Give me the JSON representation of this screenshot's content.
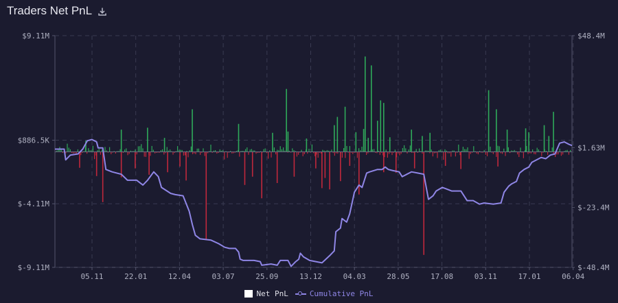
{
  "header": {
    "title": "Traders Net PnL",
    "download_icon": "download-icon"
  },
  "colors": {
    "background": "#1b1b2f",
    "positive_bar": "#2faa5a",
    "negative_bar": "#c0283c",
    "cumulative_line": "#8f86e6",
    "grid": "#3a3b52",
    "axis": "#55566e"
  },
  "chart_data": {
    "type": "bar+line",
    "title": "Traders Net PnL",
    "x_tick_labels": [
      "05.11",
      "22.01",
      "12.04",
      "03.07",
      "25.09",
      "13.12",
      "04.03",
      "28.05",
      "17.08",
      "03.11",
      "17.01",
      "06.04"
    ],
    "y_left": {
      "unit": "USD",
      "ylim": [
        -9110000,
        9110000
      ],
      "tick_values": [
        -9110000,
        -4110000,
        886500,
        9110000
      ],
      "tick_labels": [
        "$-9.11M",
        "$-4.11M",
        "$886.5K",
        "$9.11M"
      ]
    },
    "y_right": {
      "unit": "USD",
      "ylim": [
        -48400000,
        48400000
      ],
      "tick_values": [
        -48400000,
        -23400000,
        1630000,
        48400000
      ],
      "tick_labels": [
        "$-48.4M",
        "$-23.4M",
        "$1.63M",
        "$48.4M"
      ]
    },
    "grid": true,
    "legend_position": "bottom-center",
    "series": [
      {
        "name": "Net PnL",
        "kind": "bar",
        "axis": "left",
        "notable_values": [
          {
            "x": 0.08,
            "y": -1250000
          },
          {
            "x": 0.1,
            "y": 880000
          },
          {
            "x": 0.135,
            "y": -1900000
          },
          {
            "x": 0.155,
            "y": -3950000
          },
          {
            "x": 0.215,
            "y": 1750000
          },
          {
            "x": 0.215,
            "y": -2000000
          },
          {
            "x": 0.26,
            "y": -1300000
          },
          {
            "x": 0.3,
            "y": 1900000
          },
          {
            "x": 0.305,
            "y": -1800000
          },
          {
            "x": 0.355,
            "y": 1100000
          },
          {
            "x": 0.365,
            "y": -1600000
          },
          {
            "x": 0.405,
            "y": -1150000
          },
          {
            "x": 0.425,
            "y": -2250000
          },
          {
            "x": 0.445,
            "y": 3350000
          },
          {
            "x": 0.49,
            "y": -6950000
          },
          {
            "x": 0.595,
            "y": 2200000
          },
          {
            "x": 0.615,
            "y": -2600000
          },
          {
            "x": 0.64,
            "y": -1950000
          },
          {
            "x": 0.67,
            "y": -3650000
          },
          {
            "x": 0.705,
            "y": 1500000
          },
          {
            "x": 0.72,
            "y": -2450000
          },
          {
            "x": 0.75,
            "y": 4950000
          },
          {
            "x": 0.755,
            "y": 1600000
          },
          {
            "x": 0.775,
            "y": -1950000
          },
          {
            "x": 0.815,
            "y": 1050000
          },
          {
            "x": 0.845,
            "y": -1300000
          },
          {
            "x": 0.865,
            "y": -2850000
          },
          {
            "x": 0.875,
            "y": -2050000
          },
          {
            "x": 0.89,
            "y": -2950000
          },
          {
            "x": 0.905,
            "y": 2100000
          },
          {
            "x": 0.915,
            "y": 2750000
          },
          {
            "x": 0.925,
            "y": -2300000
          },
          {
            "x": 0.94,
            "y": 3550000
          },
          {
            "x": 0.955,
            "y": -1100000
          },
          {
            "x": 0.975,
            "y": 1550000
          },
          {
            "x": 0.985,
            "y": -3350000
          },
          {
            "x": 1.0,
            "y": 1800000
          },
          {
            "x": 1.005,
            "y": 7500000
          },
          {
            "x": 1.015,
            "y": 1100000
          },
          {
            "x": 1.025,
            "y": 6800000
          },
          {
            "x": 1.045,
            "y": 2450000
          },
          {
            "x": 1.055,
            "y": 4050000
          },
          {
            "x": 1.065,
            "y": 3850000
          },
          {
            "x": 1.065,
            "y": -1600000
          },
          {
            "x": 1.085,
            "y": 1150000
          },
          {
            "x": 1.105,
            "y": -1650000
          },
          {
            "x": 1.155,
            "y": 1750000
          },
          {
            "x": 1.165,
            "y": -1300000
          },
          {
            "x": 1.19,
            "y": 1250000
          },
          {
            "x": 1.195,
            "y": -8100000
          },
          {
            "x": 1.215,
            "y": 1500000
          },
          {
            "x": 1.265,
            "y": -1100000
          },
          {
            "x": 1.315,
            "y": -1350000
          },
          {
            "x": 1.405,
            "y": 4850000
          },
          {
            "x": 1.43,
            "y": 3350000
          },
          {
            "x": 1.435,
            "y": -1150000
          },
          {
            "x": 1.465,
            "y": 1750000
          },
          {
            "x": 1.525,
            "y": 1850000
          },
          {
            "x": 1.535,
            "y": 1550000
          },
          {
            "x": 1.585,
            "y": 2100000
          },
          {
            "x": 1.6,
            "y": 1250000
          },
          {
            "x": 1.615,
            "y": 3150000
          }
        ]
      },
      {
        "name": "Cumulative PnL",
        "kind": "line",
        "axis": "right",
        "points": [
          [
            0.0,
            1000000
          ],
          [
            0.03,
            1000000
          ],
          [
            0.035,
            -3500000
          ],
          [
            0.05,
            -1500000
          ],
          [
            0.075,
            -1000000
          ],
          [
            0.09,
            1000000
          ],
          [
            0.105,
            4500000
          ],
          [
            0.12,
            5000000
          ],
          [
            0.135,
            4000000
          ],
          [
            0.14,
            1500000
          ],
          [
            0.155,
            1500000
          ],
          [
            0.165,
            -7500000
          ],
          [
            0.185,
            -8500000
          ],
          [
            0.215,
            -9500000
          ],
          [
            0.235,
            -12000000
          ],
          [
            0.265,
            -12000000
          ],
          [
            0.285,
            -14000000
          ],
          [
            0.3,
            -12000000
          ],
          [
            0.32,
            -8500000
          ],
          [
            0.335,
            -10500000
          ],
          [
            0.345,
            -15000000
          ],
          [
            0.375,
            -17500000
          ],
          [
            0.39,
            -18000000
          ],
          [
            0.415,
            -18500000
          ],
          [
            0.435,
            -25000000
          ],
          [
            0.445,
            -30500000
          ],
          [
            0.455,
            -35000000
          ],
          [
            0.47,
            -36500000
          ],
          [
            0.505,
            -37000000
          ],
          [
            0.53,
            -38500000
          ],
          [
            0.55,
            -40000000
          ],
          [
            0.565,
            -40500000
          ],
          [
            0.585,
            -40500000
          ],
          [
            0.595,
            -42000000
          ],
          [
            0.6,
            -45000000
          ],
          [
            0.61,
            -45500000
          ],
          [
            0.645,
            -45500000
          ],
          [
            0.665,
            -46000000
          ],
          [
            0.67,
            -47500000
          ],
          [
            0.7,
            -47000000
          ],
          [
            0.72,
            -47500000
          ],
          [
            0.73,
            -45500000
          ],
          [
            0.755,
            -45500000
          ],
          [
            0.765,
            -48000000
          ],
          [
            0.78,
            -46000000
          ],
          [
            0.79,
            -45000000
          ],
          [
            0.795,
            -42500000
          ],
          [
            0.805,
            -44000000
          ],
          [
            0.825,
            -45500000
          ],
          [
            0.845,
            -46000000
          ],
          [
            0.865,
            -46500000
          ],
          [
            0.89,
            -43500000
          ],
          [
            0.905,
            -41500000
          ],
          [
            0.91,
            -33500000
          ],
          [
            0.925,
            -32000000
          ],
          [
            0.93,
            -28000000
          ],
          [
            0.945,
            -29500000
          ],
          [
            0.955,
            -26000000
          ],
          [
            0.97,
            -17000000
          ],
          [
            0.985,
            -14000000
          ],
          [
            0.995,
            -15000000
          ],
          [
            1.01,
            -9000000
          ],
          [
            1.02,
            -8500000
          ],
          [
            1.045,
            -7500000
          ],
          [
            1.06,
            -7500000
          ],
          [
            1.07,
            -6500000
          ],
          [
            1.08,
            -7500000
          ],
          [
            1.095,
            -8000000
          ],
          [
            1.115,
            -8500000
          ],
          [
            1.125,
            -10500000
          ],
          [
            1.14,
            -9500000
          ],
          [
            1.155,
            -8500000
          ],
          [
            1.175,
            -9000000
          ],
          [
            1.195,
            -9500000
          ],
          [
            1.21,
            -20000000
          ],
          [
            1.225,
            -18500000
          ],
          [
            1.235,
            -16500000
          ],
          [
            1.255,
            -15000000
          ],
          [
            1.265,
            -15500000
          ],
          [
            1.285,
            -16500000
          ],
          [
            1.315,
            -16500000
          ],
          [
            1.335,
            -20500000
          ],
          [
            1.355,
            -20500000
          ],
          [
            1.375,
            -22000000
          ],
          [
            1.39,
            -21500000
          ],
          [
            1.42,
            -22000000
          ],
          [
            1.445,
            -21500000
          ],
          [
            1.455,
            -17000000
          ],
          [
            1.47,
            -14500000
          ],
          [
            1.48,
            -13500000
          ],
          [
            1.495,
            -12500000
          ],
          [
            1.505,
            -9000000
          ],
          [
            1.52,
            -7500000
          ],
          [
            1.535,
            -6500000
          ],
          [
            1.545,
            -4500000
          ],
          [
            1.56,
            -3500000
          ],
          [
            1.575,
            -2500000
          ],
          [
            1.59,
            -3000000
          ],
          [
            1.605,
            -1500000
          ],
          [
            1.62,
            -1000000
          ],
          [
            1.635,
            3500000
          ],
          [
            1.65,
            4000000
          ],
          [
            1.665,
            3000000
          ],
          [
            1.675,
            2500000
          ]
        ]
      }
    ]
  },
  "legend": {
    "items": [
      {
        "label": "Net PnL"
      },
      {
        "label": "Cumulative PnL"
      }
    ]
  }
}
